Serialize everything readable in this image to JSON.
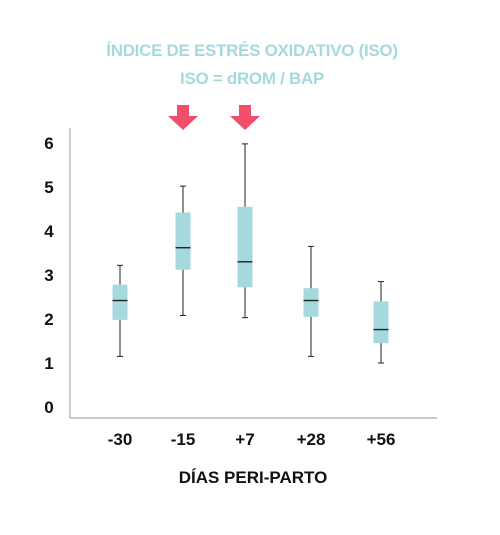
{
  "chart_data": {
    "type": "boxplot",
    "title": "ÍNDICE DE ESTRÉS OXIDATIVO (ISO)",
    "subtitle": "ISO = dROM / BAP",
    "xlabel": "DÍAS PERI-PARTO",
    "ylabel": "",
    "ylim": [
      0,
      6
    ],
    "yticks": [
      "0",
      "1",
      "2",
      "3",
      "4",
      "5",
      "6"
    ],
    "categories": [
      "-30",
      "-15",
      "+7",
      "+28",
      "+56"
    ],
    "boxes": [
      {
        "min": 1.15,
        "q1": 1.98,
        "median": 2.42,
        "q3": 2.78,
        "max": 3.22
      },
      {
        "min": 2.08,
        "q1": 3.12,
        "median": 3.62,
        "q3": 4.42,
        "max": 5.02
      },
      {
        "min": 2.03,
        "q1": 2.72,
        "median": 3.3,
        "q3": 4.55,
        "max": 5.98
      },
      {
        "min": 1.15,
        "q1": 2.05,
        "median": 2.42,
        "q3": 2.7,
        "max": 3.65
      },
      {
        "min": 1.0,
        "q1": 1.45,
        "median": 1.76,
        "q3": 2.4,
        "max": 2.85
      }
    ],
    "highlighted_categories": [
      "-15",
      "+7"
    ],
    "grid": false,
    "colors": {
      "box": "#a6d9de",
      "arrow": "#f24d6b",
      "title": "#a6d9de",
      "axis": "#aaaaaa",
      "text": "#111111"
    }
  }
}
